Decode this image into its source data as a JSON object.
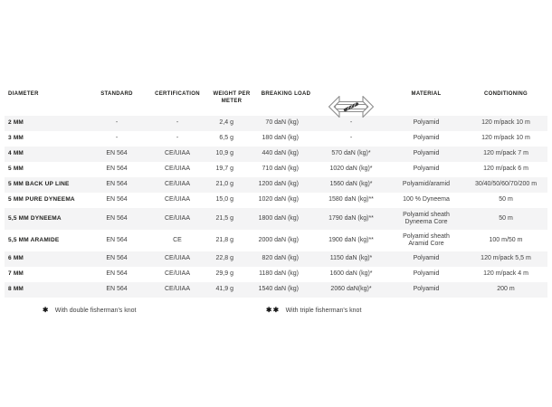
{
  "colors": {
    "background": "#ffffff",
    "row_stripe": "#f4f4f5",
    "text_primary": "#1d1d1b",
    "text_secondary": "#3f3f3f"
  },
  "table": {
    "columns": [
      {
        "key": "diameter",
        "label": "DIAMETER"
      },
      {
        "key": "standard",
        "label": "STANDARD"
      },
      {
        "key": "certification",
        "label": "CERTIFICATION"
      },
      {
        "key": "weight_per_meter",
        "label": "WEIGHT PER METER"
      },
      {
        "key": "breaking_load",
        "label": "BREAKING LOAD"
      },
      {
        "key": "breaking_load_with_knot",
        "label": "",
        "icon": "rope-loop-tension-icon"
      },
      {
        "key": "material",
        "label": "MATERIAL"
      },
      {
        "key": "conditioning",
        "label": "CONDITIONING"
      }
    ],
    "rows": [
      {
        "cells": [
          "2 MM",
          "-",
          "-",
          "2,4 g",
          "70 daN (kg)",
          "-",
          "Polyamid",
          "120 m/pack 10 m"
        ]
      },
      {
        "cells": [
          "3 MM",
          "-",
          "-",
          "6,5 g",
          "180 daN (kg)",
          "-",
          "Polyamid",
          "120 m/pack 10 m"
        ]
      },
      {
        "cells": [
          "4 MM",
          "EN 564",
          "CE/UIAA",
          "10,9 g",
          "440 daN (kg)",
          "570 daN (kg)*",
          "Polyamid",
          "120 m/pack 7 m"
        ]
      },
      {
        "cells": [
          "5 MM",
          "EN 564",
          "CE/UIAA",
          "19,7 g",
          "710 daN (kg)",
          "1020 daN (kg)*",
          "Polyamid",
          "120 m/pack 6 m"
        ]
      },
      {
        "cells": [
          "5 MM BACK UP LINE",
          "EN 564",
          "CE/UIAA",
          "21,0 g",
          "1200 daN (kg)",
          "1560 daN (kg)*",
          "Polyamid/aramid",
          "30/40/50/60/70/200 m"
        ]
      },
      {
        "cells": [
          "5 MM PURE DYNEEMA",
          "EN 564",
          "CE/UIAA",
          "15,0 g",
          "1020 daN (kg)",
          "1580 daN (kg)**",
          "100 % Dyneema",
          "50 m"
        ]
      },
      {
        "cells": [
          "5,5 MM DYNEEMA",
          "EN 564",
          "CE/UIAA",
          "21,5 g",
          "1800 daN (kg)",
          "1790 daN (kg)**",
          "Polyamid sheath\nDyneema Core",
          "50 m"
        ]
      },
      {
        "cells": [
          "5,5 MM ARAMIDE",
          "EN 564",
          "CE",
          "21,8 g",
          "2000 daN (kg)",
          "1900 daN (kg)**",
          "Polyamid sheath\nAramid Core",
          "100 m/50 m"
        ]
      },
      {
        "cells": [
          "6 MM",
          "EN 564",
          "CE/UIAA",
          "22,8 g",
          "820 daN (kg)",
          "1150 daN (kg)*",
          "Polyamid",
          "120 m/pack 5,5 m"
        ]
      },
      {
        "cells": [
          "7 MM",
          "EN 564",
          "CE/UIAA",
          "29,9 g",
          "1180 daN (kg)",
          "1600 daN (kg)*",
          "Polyamid",
          "120 m/pack 4 m"
        ]
      },
      {
        "cells": [
          "8 MM",
          "EN 564",
          "CE/UIAA",
          "41,9 g",
          "1540 daN (kg)",
          "2060 daN(kg)*",
          "Polyamid",
          "200 m"
        ]
      }
    ]
  },
  "footnotes": [
    {
      "marker": "✱",
      "text": "With double fisherman's knot"
    },
    {
      "marker": "✱✱",
      "text": "With triple fisherman's knot"
    }
  ]
}
